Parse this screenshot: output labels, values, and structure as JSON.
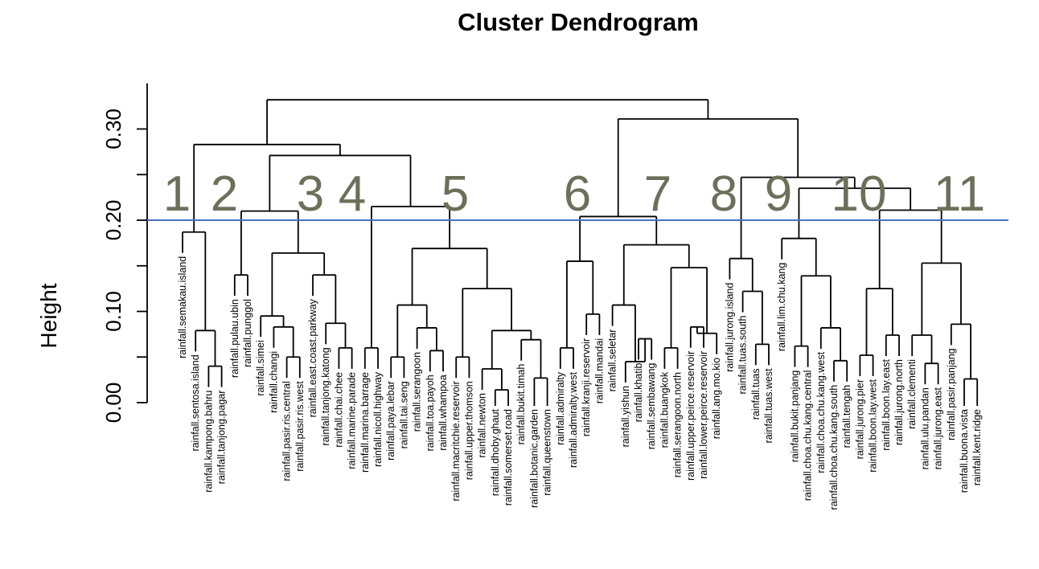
{
  "chart_data": {
    "type": "dendrogram",
    "title": "Cluster Dendrogram",
    "ylabel": "Height",
    "ylim": [
      0,
      0.35
    ],
    "yticks": [
      "0.00",
      "0.10",
      "0.20",
      "0.30"
    ],
    "cut_height": 0.2,
    "cut_line_color": "#4472c4",
    "cluster_label_color": "#6b705a",
    "cluster_labels": [
      "1",
      "2",
      "3",
      "4",
      "5",
      "6",
      "7",
      "8",
      "9",
      "10",
      "11"
    ],
    "leaves": [
      {
        "label": "rainfall.semakau.island",
        "top": 0.155
      },
      {
        "label": "rainfall.sentosa.island",
        "top": 0.0
      },
      {
        "label": "rainfall.kampong.bahru",
        "top": 0.0
      },
      {
        "label": "rainfall.tanjong.pagar",
        "top": 0.0
      },
      {
        "label": "rainfall.pulau.ubin",
        "top": 0.0
      },
      {
        "label": "rainfall.punggol",
        "top": 0.0
      },
      {
        "label": "rainfall.simei",
        "top": 0.0
      },
      {
        "label": "rainfall.changi",
        "top": 0.0
      },
      {
        "label": "rainfall.pasir.ris.central",
        "top": 0.0
      },
      {
        "label": "rainfall.pasir.ris.west",
        "top": 0.0
      },
      {
        "label": "rainfall.east.coast.parkway",
        "top": 0.0
      },
      {
        "label": "rainfall.tanjong.katong",
        "top": 0.0
      },
      {
        "label": "rainfall.chai.chee",
        "top": 0.0
      },
      {
        "label": "rainfall.marine.parade",
        "top": 0.0
      },
      {
        "label": "rainfall.marina.barrage",
        "top": 0.0
      },
      {
        "label": "rainfall.nicoll.highway",
        "top": 0.0
      },
      {
        "label": "rainfall.paya.lebar",
        "top": 0.0
      },
      {
        "label": "rainfall.tai.seng",
        "top": 0.0
      },
      {
        "label": "rainfall.serangoon",
        "top": 0.0
      },
      {
        "label": "rainfall.toa.payoh",
        "top": 0.0
      },
      {
        "label": "rainfall.whampoa",
        "top": 0.0
      },
      {
        "label": "rainfall.macritchie.reservoir",
        "top": 0.0
      },
      {
        "label": "rainfall.upper.thomson",
        "top": 0.0
      },
      {
        "label": "rainfall.newton",
        "top": 0.0
      },
      {
        "label": "rainfall.dhoby.ghaut",
        "top": 0.0
      },
      {
        "label": "rainfall.somerset.road",
        "top": 0.0
      },
      {
        "label": "rainfall.bukit.timah",
        "top": 0.0
      },
      {
        "label": "rainfall.botanic.garden",
        "top": 0.0
      },
      {
        "label": "rainfall.queenstown",
        "top": 0.0
      },
      {
        "label": "rainfall.admiralty",
        "top": 0.0
      },
      {
        "label": "rainfall.admiralty.west",
        "top": 0.0
      },
      {
        "label": "rainfall.kranji.reservoir",
        "top": 0.0
      },
      {
        "label": "rainfall.mandai",
        "top": 0.0
      },
      {
        "label": "rainfall.seletar",
        "top": 0.0
      },
      {
        "label": "rainfall.yishun",
        "top": 0.0
      },
      {
        "label": "rainfall.khatib",
        "top": 0.0
      },
      {
        "label": "rainfall.sembawang",
        "top": 0.0
      },
      {
        "label": "rainfall.buangkok",
        "top": 0.0
      },
      {
        "label": "rainfall.serangoon.north",
        "top": 0.0
      },
      {
        "label": "rainfall.upper.peirce.reservoir",
        "top": 0.0
      },
      {
        "label": "rainfall.lower.peirce.reservoir",
        "top": 0.0
      },
      {
        "label": "rainfall.ang.mo.kio",
        "top": 0.0
      },
      {
        "label": "rainfall.jurong.island",
        "top": 0.0
      },
      {
        "label": "rainfall.tuas.south",
        "top": 0.0
      },
      {
        "label": "rainfall.tuas",
        "top": 0.0
      },
      {
        "label": "rainfall.tuas.west",
        "top": 0.0
      },
      {
        "label": "rainfall.lim.chu.kang",
        "top": 0.0
      },
      {
        "label": "rainfall.bukit.panjang",
        "top": 0.0
      },
      {
        "label": "rainfall.choa.chu.kang.central",
        "top": 0.0
      },
      {
        "label": "rainfall.choa.chu.kang.west",
        "top": 0.0
      },
      {
        "label": "rainfall.choa.chu.kang.south",
        "top": 0.0
      },
      {
        "label": "rainfall.tengah",
        "top": 0.0
      },
      {
        "label": "rainfall.jurong.pier",
        "top": 0.0
      },
      {
        "label": "rainfall.boon.lay.west",
        "top": 0.0
      },
      {
        "label": "rainfall.boon.lay.east",
        "top": 0.0
      },
      {
        "label": "rainfall.jurong.north",
        "top": 0.0
      },
      {
        "label": "rainfall.clementi",
        "top": 0.0
      },
      {
        "label": "rainfall.ulu.pandan",
        "top": 0.0
      },
      {
        "label": "rainfall.jurong.east",
        "top": 0.0
      },
      {
        "label": "rainfall.pasir.panjang",
        "top": 0.0
      },
      {
        "label": "rainfall.buona.vista",
        "top": 0.0
      },
      {
        "label": "rainfall.kent.ridge",
        "top": 0.0
      }
    ],
    "merges": [
      [
        0.04,
        "3",
        "4"
      ],
      [
        0.079,
        "2",
        "N1"
      ],
      [
        0.187,
        "1",
        "N2"
      ],
      [
        0.14,
        "5",
        "6"
      ],
      [
        0.05,
        "9",
        "10"
      ],
      [
        0.083,
        "8",
        "N5"
      ],
      [
        0.095,
        "7",
        "N6"
      ],
      [
        0.06,
        "13",
        "14"
      ],
      [
        0.087,
        "12",
        "N8"
      ],
      [
        0.14,
        "11",
        "N9"
      ],
      [
        0.164,
        "N7",
        "N10"
      ],
      [
        0.21,
        "N4",
        "N11"
      ],
      [
        0.06,
        "15",
        "16"
      ],
      [
        0.05,
        "17",
        "18"
      ],
      [
        0.057,
        "20",
        "21"
      ],
      [
        0.082,
        "19",
        "N15"
      ],
      [
        0.107,
        "N14",
        "N16"
      ],
      [
        0.05,
        "22",
        "23"
      ],
      [
        0.014,
        "25",
        "26"
      ],
      [
        0.037,
        "24",
        "N19"
      ],
      [
        0.027,
        "28",
        "29"
      ],
      [
        0.069,
        "27",
        "N21"
      ],
      [
        0.079,
        "N20",
        "N22"
      ],
      [
        0.125,
        "N18",
        "N23"
      ],
      [
        0.169,
        "N17",
        "N24"
      ],
      [
        0.215,
        "N13",
        "N25"
      ],
      [
        0.271,
        "N12",
        "N26"
      ],
      [
        0.283,
        "N3",
        "N27"
      ],
      [
        0.06,
        "30",
        "31"
      ],
      [
        0.097,
        "32",
        "33"
      ],
      [
        0.155,
        "N29",
        "N30"
      ],
      [
        0.07,
        "36",
        "37"
      ],
      [
        0.045,
        "35",
        "N32"
      ],
      [
        0.107,
        "34",
        "N33"
      ],
      [
        0.06,
        "38",
        "39"
      ],
      [
        0.083,
        "40",
        "41"
      ],
      [
        0.076,
        "42",
        "N36"
      ],
      [
        0.148,
        "N35",
        "N37"
      ],
      [
        0.173,
        "N34",
        "N38"
      ],
      [
        0.204,
        "N31",
        "N39"
      ],
      [
        0.064,
        "45",
        "46"
      ],
      [
        0.122,
        "44",
        "N41"
      ],
      [
        0.158,
        "43",
        "N42"
      ],
      [
        0.062,
        "48",
        "49"
      ],
      [
        0.046,
        "51",
        "52"
      ],
      [
        0.082,
        "50",
        "N45"
      ],
      [
        0.139,
        "N44",
        "N46"
      ],
      [
        0.18,
        "47",
        "N47"
      ],
      [
        0.052,
        "53",
        "54"
      ],
      [
        0.074,
        "55",
        "56"
      ],
      [
        0.125,
        "N49",
        "N50"
      ],
      [
        0.043,
        "58",
        "59"
      ],
      [
        0.074,
        "57",
        "N52"
      ],
      [
        0.026,
        "61",
        "62"
      ],
      [
        0.086,
        "60",
        "N54"
      ],
      [
        0.153,
        "N53",
        "N55"
      ],
      [
        0.211,
        "N51",
        "N56"
      ],
      [
        0.235,
        "N48",
        "N57"
      ],
      [
        0.247,
        "N43",
        "N58"
      ],
      [
        0.311,
        "N40",
        "N59"
      ],
      [
        0.332,
        "N28",
        "N60"
      ]
    ]
  }
}
